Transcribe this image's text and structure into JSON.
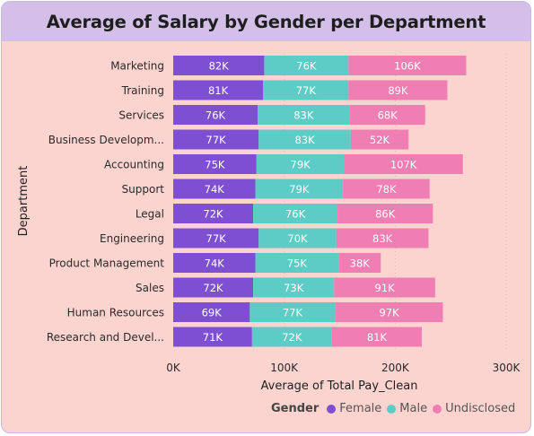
{
  "title": "Average of Salary by Gender per Department",
  "chart_data": {
    "type": "bar",
    "orientation": "horizontal",
    "stacked": true,
    "categories": [
      "Marketing",
      "Training",
      "Services",
      "Business Developm...",
      "Accounting",
      "Support",
      "Legal",
      "Engineering",
      "Product Management",
      "Sales",
      "Human Resources",
      "Research and Devel..."
    ],
    "series": [
      {
        "name": "Female",
        "color": "#7e4fd0",
        "values": [
          82,
          81,
          76,
          77,
          75,
          74,
          72,
          77,
          74,
          72,
          69,
          71
        ]
      },
      {
        "name": "Male",
        "color": "#5dccc6",
        "values": [
          76,
          77,
          83,
          83,
          79,
          79,
          76,
          70,
          75,
          73,
          77,
          72
        ]
      },
      {
        "name": "Undisclosed",
        "color": "#ef7fb3",
        "values": [
          106,
          89,
          68,
          52,
          107,
          78,
          86,
          83,
          38,
          91,
          97,
          81
        ]
      }
    ],
    "value_unit": "K",
    "xlim": [
      0,
      300
    ],
    "xticks": [
      "0K",
      "100K",
      "200K",
      "300K"
    ],
    "xlabel": "Average of Total Pay_Clean",
    "ylabel": "Department",
    "legend_title": "Gender",
    "legend_position": "bottom-right",
    "grid": true
  }
}
